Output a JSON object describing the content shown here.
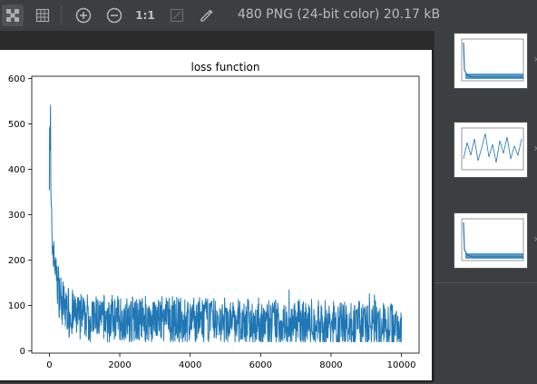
{
  "toolbar": {
    "zoom_actual_label": "1:1",
    "image_info": "480 PNG (24-bit color) 20.17 kB",
    "icons": [
      "chessboard-icon",
      "grid-icon",
      "zoom-in-icon",
      "zoom-out-icon",
      "actual-size-icon",
      "fit-to-window-icon",
      "color-picker-icon"
    ]
  },
  "colors": {
    "line": "#1f77b4",
    "background": "#3c3f41"
  },
  "chart_data": {
    "type": "line",
    "title": "loss function",
    "xlim": [
      -500,
      10500
    ],
    "ylim": [
      -5,
      605
    ],
    "xticks": [
      0,
      2000,
      4000,
      6000,
      8000,
      10000
    ],
    "yticks": [
      0,
      100,
      200,
      300,
      400,
      500,
      600
    ],
    "x": [
      0,
      10,
      20,
      30,
      40,
      50,
      60,
      70,
      80,
      100,
      120,
      150,
      180,
      200,
      250,
      300,
      350,
      400,
      500,
      600,
      700,
      800,
      1000,
      1200,
      1500,
      2000,
      2500,
      3000,
      3500,
      4000,
      4500,
      5000,
      5500,
      6000,
      6500,
      7000,
      7500,
      8000,
      8500,
      9000,
      9500,
      10000
    ],
    "y": [
      450,
      575,
      400,
      520,
      350,
      300,
      280,
      260,
      250,
      230,
      215,
      195,
      180,
      170,
      150,
      130,
      115,
      105,
      95,
      88,
      82,
      80,
      78,
      76,
      75,
      73,
      72,
      71,
      70,
      70,
      69,
      68,
      67,
      67,
      66,
      65,
      64,
      62,
      61,
      60,
      60,
      59
    ],
    "noise_band": [
      25,
      50
    ],
    "grid": false,
    "legend": "none"
  }
}
